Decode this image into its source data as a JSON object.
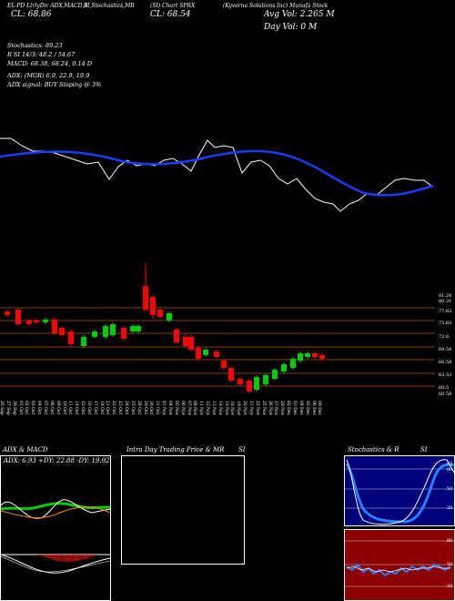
{
  "header": {
    "h1": "EL-PD LtrlyDir ADX,MACD,B",
    "h2": "SI,Stochastics,MR",
    "h3": "(SI) Chart SPRX",
    "h4": "(Kyverna Solutions Inc) Munafa Stock",
    "day_change": "CL: 68.86",
    "close": "CL: 68.54",
    "avg_vol": "Avg Vol: 2.265 M",
    "day_vol": "Day Vol: 0   M"
  },
  "info": {
    "stoch": "Stochastics: 89.23",
    "rsi": "R          SI 14/3: 48.2  / 54.67",
    "macd": "MACD: 68.38, 68.24, 0.14  D",
    "adx": "ADX:                              (MGR) 6.9,  22.9,  19.9",
    "adx_signal": "ADX  signal:                              BUY Sloping @ 3%"
  },
  "price_labels": [
    "81.28",
    "80.31",
    "77.63",
    "75.63",
    "72.6",
    "69.58",
    "66.58",
    "63.53",
    "60.5",
    "60.59"
  ],
  "dates": [
    "26 Sep",
    "27 Sep",
    "30 Sep",
    "01 Oct",
    "02 Oct",
    "03 Oct",
    "04 Oct",
    "07 Oct",
    "08 Oct",
    "09 Oct",
    "10 Oct",
    "11 Oct",
    "14 Oct",
    "15 Oct",
    "16 Oct",
    "17 Oct",
    "18 Oct",
    "21 Oct",
    "22 Oct",
    "23 Oct",
    "24 Oct",
    "25 Oct",
    "28 Oct",
    "29 Oct",
    "30 Oct",
    "31 Oct",
    "01 Nov",
    "04 Nov",
    "05 Nov",
    "06 Nov",
    "07 Nov",
    "08 Nov",
    "11 Nov",
    "12 Nov",
    "13 Nov",
    "14 Nov",
    "15 Nov",
    "18 Nov",
    "19 Nov",
    "20 Nov",
    "21 Nov",
    "22 Nov",
    "25 Nov",
    "26 Nov",
    "27 Nov",
    "29 Nov",
    "02 Dec",
    "03 Dec",
    "04 Dec",
    "05 Dec",
    "06 Dec",
    "09 Dec"
  ],
  "panels": {
    "adx_title": "ADX  & MACD",
    "adx_values": "ADX: 6.93   +DY: 22.88    -DY: 19.92",
    "intra_title": "Intra Day Trading Price  & MR",
    "intra_si": "SI",
    "stoch_title": "Stochastics & R",
    "stoch_si": "SI",
    "stoch_label": "55",
    "stoch_levels": [
      "80",
      "50",
      "20"
    ],
    "rsi_levels": [
      "80",
      "50",
      "20"
    ]
  },
  "colors": {
    "up": "#00cc00",
    "down": "#ff0000",
    "ma": "#1a3cff",
    "grid": "#b35900"
  }
}
